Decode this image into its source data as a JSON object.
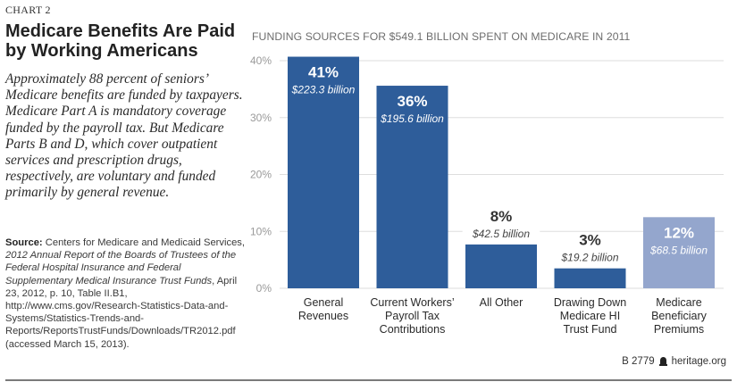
{
  "header": {
    "chart_number": "CHART 2",
    "title": "Medicare Benefits Are Paid by Working Americans",
    "intro": "Approximately 88 percent of seniors’ Medicare benefits are funded by taxpayers. Medicare Part A is mandatory coverage funded by the payroll tax. But Medicare Parts B and D, which cover outpatient services and prescription drugs, respectively, are voluntary and funded primarily by general revenue."
  },
  "source": {
    "label": "Source:",
    "text_before_italic": " Centers for Medicare and Medicaid Services, ",
    "italic_title": "2012 Annual Report of the Boards of Trustees of the Federal Hospital Insurance and Federal Supplementary Medical Insurance Trust Funds",
    "text_after_italic": ", April 23, 2012, p. 10, Table II.B1, http://www.cms.gov/Research-Statistics-Data-and-Systems/Statistics-Trends-and-Reports/ReportsTrustFunds/Downloads/TR2012.pdf (accessed March 15, 2013)."
  },
  "footer": {
    "code": "B 2779",
    "icon": "liberty-bell-icon",
    "site": "heritage.org"
  },
  "colors": {
    "primary_bar": "#2e5d9a",
    "highlight_bar": "#94a6cd",
    "gridline": "#dedede",
    "axis_text": "#9a9a9a"
  },
  "chart_data": {
    "type": "bar",
    "title": "FUNDING SOURCES FOR $549.1 BILLION SPENT ON MEDICARE IN 2011",
    "xlabel": "",
    "ylabel": "",
    "ylim": [
      0,
      40
    ],
    "yticks": [
      0,
      10,
      20,
      30,
      40
    ],
    "ytick_labels": [
      "0%",
      "10%",
      "20%",
      "30%",
      "40%"
    ],
    "grid": true,
    "categories": [
      [
        "General",
        "Revenues"
      ],
      [
        "Current Workers’",
        "Payroll Tax",
        "Contributions"
      ],
      [
        "All Other"
      ],
      [
        "Drawing Down",
        "Medicare HI",
        "Trust Fund"
      ],
      [
        "Medicare",
        "Beneficiary",
        "Premiums"
      ]
    ],
    "values": [
      40.7,
      35.6,
      7.7,
      3.5,
      12.5
    ],
    "value_labels": [
      "41%",
      "36%",
      "8%",
      "3%",
      "12%"
    ],
    "amount_labels": [
      "$223.3 billion",
      "$195.6 billion",
      "$42.5 billion",
      "$19.2 billion",
      "$68.5 billion"
    ],
    "amounts_billion": [
      223.3,
      195.6,
      42.5,
      19.2,
      68.5
    ],
    "highlight": [
      false,
      false,
      false,
      false,
      true
    ],
    "label_inside": [
      true,
      true,
      false,
      false,
      true
    ]
  }
}
